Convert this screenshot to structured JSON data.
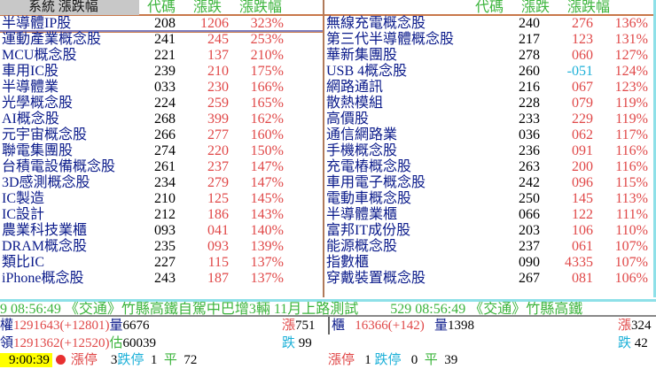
{
  "header": {
    "system_label": "系統 漲跌幅",
    "col_code": "代碼",
    "col_change": "漲跌",
    "col_pct": "漲跌幅"
  },
  "left_rows": [
    {
      "name": "半導體IP股",
      "code": "208",
      "change": "1206",
      "pct": "323%"
    },
    {
      "name": "運動產業概念股",
      "code": "241",
      "change": "245",
      "pct": "253%"
    },
    {
      "name": "MCU概念股",
      "code": "221",
      "change": "137",
      "pct": "210%"
    },
    {
      "name": "車用IC股",
      "code": "239",
      "change": "210",
      "pct": "175%"
    },
    {
      "name": "半導體業",
      "code": "033",
      "change": "230",
      "pct": "166%"
    },
    {
      "name": "光學概念股",
      "code": "224",
      "change": "259",
      "pct": "165%"
    },
    {
      "name": "AI概念股",
      "code": "268",
      "change": "399",
      "pct": "162%"
    },
    {
      "name": "元宇宙概念股",
      "code": "266",
      "change": "277",
      "pct": "160%"
    },
    {
      "name": "聯電集團股",
      "code": "274",
      "change": "220",
      "pct": "150%"
    },
    {
      "name": "台積電設備概念股",
      "code": "261",
      "change": "237",
      "pct": "147%"
    },
    {
      "name": "3D感測概念股",
      "code": "234",
      "change": "279",
      "pct": "147%"
    },
    {
      "name": "IC製造",
      "code": "210",
      "change": "125",
      "pct": "145%"
    },
    {
      "name": "IC設計",
      "code": "212",
      "change": "186",
      "pct": "143%"
    },
    {
      "name": "農業科技業櫃",
      "code": "093",
      "change": "041",
      "pct": "140%"
    },
    {
      "name": "DRAM概念股",
      "code": "235",
      "change": "093",
      "pct": "139%"
    },
    {
      "name": "類比IC",
      "code": "227",
      "change": "115",
      "pct": "137%"
    },
    {
      "name": "iPhone概念股",
      "code": "243",
      "change": "187",
      "pct": "137%"
    }
  ],
  "right_rows": [
    {
      "name": "無線充電概念股",
      "code": "240",
      "change": "276",
      "pct": "136%"
    },
    {
      "name": "第三代半導體概念股",
      "code": "217",
      "change": "123",
      "pct": "131%"
    },
    {
      "name": "華新集團股",
      "code": "278",
      "change": "060",
      "pct": "127%"
    },
    {
      "name": "USB 4概念股",
      "code": "260",
      "change": "-051",
      "pct": "124%"
    },
    {
      "name": "網路通訊",
      "code": "216",
      "change": "067",
      "pct": "123%"
    },
    {
      "name": "散熱模組",
      "code": "228",
      "change": "079",
      "pct": "119%"
    },
    {
      "name": "高價股",
      "code": "233",
      "change": "229",
      "pct": "119%"
    },
    {
      "name": "通信網路業",
      "code": "036",
      "change": "062",
      "pct": "117%"
    },
    {
      "name": "手機概念股",
      "code": "236",
      "change": "091",
      "pct": "116%"
    },
    {
      "name": "充電樁概念股",
      "code": "263",
      "change": "200",
      "pct": "116%"
    },
    {
      "name": "車用電子概念股",
      "code": "242",
      "change": "096",
      "pct": "115%"
    },
    {
      "name": "電動車概念股",
      "code": "250",
      "change": "145",
      "pct": "113%"
    },
    {
      "name": "半導體業櫃",
      "code": "066",
      "change": "122",
      "pct": "111%"
    },
    {
      "name": "富邦IT成份股",
      "code": "203",
      "change": "106",
      "pct": "110%"
    },
    {
      "name": "能源概念股",
      "code": "237",
      "change": "061",
      "pct": "107%"
    },
    {
      "name": "指數櫃",
      "code": "090",
      "change": "4335",
      "pct": "107%"
    },
    {
      "name": "穿戴裝置概念股",
      "code": "267",
      "change": "081",
      "pct": "106%"
    }
  ],
  "ticker": "9 08:56:49 《交通》竹縣高鐵自駕中巴增3輛 11月上路測試　　 529 08:56:49 《交通》竹縣高鐵",
  "twse": {
    "label1": "權",
    "index": "1291643(+12801)",
    "vol_label": "量",
    "vol": "6676",
    "label2": "領",
    "lead": "1291362(+12520)",
    "est_label": "估",
    "est": "60039",
    "up_label": "漲",
    "up": "751",
    "down_label": "跌",
    "down": " 99"
  },
  "otc": {
    "label": "櫃",
    "index": "16366(+142)",
    "vol_label": "量",
    "vol": "1398",
    "up_label": "漲",
    "up": "324",
    "down_label": "跌",
    "down": " 42"
  },
  "status": {
    "time": "9:00:39",
    "limit_up_label": "漲停",
    "limit_up": "3",
    "limit_down_label": "跌停",
    "limit_down": "1",
    "flat_label": "平",
    "flat": "72"
  },
  "otc_status": {
    "limit_up_label": "漲停",
    "limit_up": "1",
    "limit_down_label": "跌停",
    "limit_down": "0",
    "flat_label": "平",
    "flat": "39"
  },
  "colors": {
    "up": "#e04848",
    "down": "#1cb0d8",
    "name": "#0a1a8a",
    "header": "#3cb43c"
  }
}
